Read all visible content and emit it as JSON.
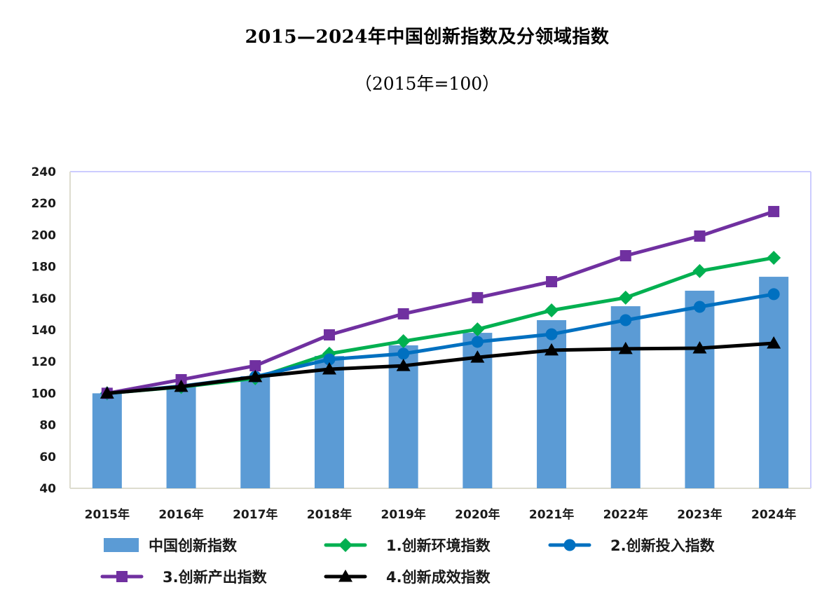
{
  "chart_data": {
    "type": "bar+line",
    "title": "2015—2024年中国创新指数及分领域指数",
    "subtitle": "（2015年=100）",
    "xlabel": "",
    "ylabel": "",
    "categories": [
      "2015年",
      "2016年",
      "2017年",
      "2018年",
      "2019年",
      "2020年",
      "2021年",
      "2022年",
      "2023年",
      "2024年"
    ],
    "ylim": [
      40,
      240
    ],
    "yticks": [
      40,
      60,
      80,
      100,
      120,
      140,
      160,
      180,
      200,
      220,
      240
    ],
    "grid": false,
    "legend_position": "bottom",
    "series": [
      {
        "name": "中国创新指数",
        "type": "bar",
        "color": "#5B9BD5",
        "marker": "rect",
        "values": [
          100,
          104.0,
          110.8,
          123.6,
          130.3,
          138.2,
          146.2,
          155.0,
          164.8,
          173.6
        ]
      },
      {
        "name": "1.创新环境指数",
        "type": "line",
        "color": "#00B050",
        "marker": "diamond",
        "values": [
          100,
          104.0,
          109.5,
          125.0,
          132.9,
          140.4,
          152.4,
          160.4,
          177.2,
          185.6
        ]
      },
      {
        "name": "2.创新投入指数",
        "type": "line",
        "color": "#0070C0",
        "marker": "circle",
        "values": [
          100,
          104.5,
          110.5,
          121.4,
          125.0,
          132.5,
          137.3,
          146.2,
          154.6,
          162.6
        ]
      },
      {
        "name": "3.创新产出指数",
        "type": "line",
        "color": "#7030A0",
        "marker": "square",
        "values": [
          100,
          108.6,
          117.4,
          136.9,
          150.2,
          160.4,
          170.5,
          186.9,
          199.3,
          214.8
        ]
      },
      {
        "name": "4.创新成效指数",
        "type": "line",
        "color": "#000000",
        "marker": "triangle",
        "values": [
          100,
          104.2,
          110.4,
          115.2,
          117.4,
          122.7,
          127.2,
          128.1,
          128.5,
          131.6
        ]
      }
    ],
    "legend_order": [
      0,
      1,
      2,
      3,
      4
    ]
  }
}
